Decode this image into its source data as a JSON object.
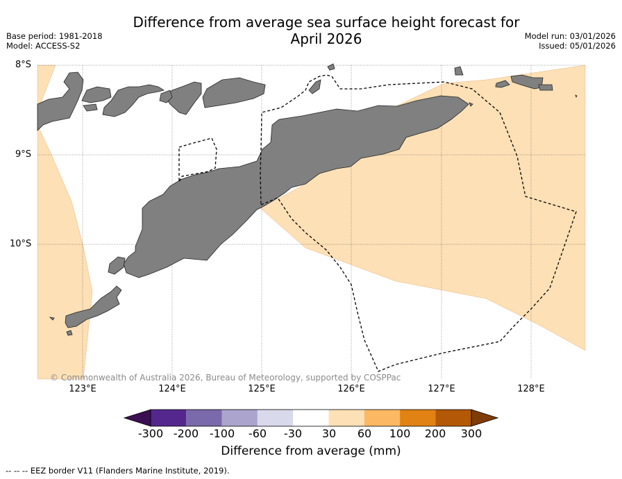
{
  "title": "Difference from average sea surface height forecast for\nApril 2026",
  "meta_left": {
    "base_period": "Base period: 1981-2018",
    "model": "Model: ACCESS-S2"
  },
  "meta_right": {
    "model_run": "Model run: 03/01/2026",
    "issued": "Issued: 05/01/2026"
  },
  "axes": {
    "lat_labels": [
      "8°S",
      "9°S",
      "10°S"
    ],
    "lon_labels": [
      "123°E",
      "124°E",
      "125°E",
      "126°E",
      "127°E",
      "128°E"
    ]
  },
  "copyright": "© Commonwealth of Australia 2026, Bureau of Meteorology, supported by COSPPac",
  "colorbar": {
    "ticks": [
      "-300",
      "-200",
      "-100",
      "-60",
      "-30",
      "30",
      "60",
      "100",
      "200",
      "300"
    ],
    "colors": [
      "#3b0f52",
      "#54278f",
      "#7a6aab",
      "#aba4cd",
      "#d8d9eb",
      "#ffffff",
      "#fde0b5",
      "#fdb863",
      "#e08214",
      "#b35806",
      "#7f3b08"
    ],
    "label": "Difference from average (mm)"
  },
  "map_colors": {
    "land": "#808080",
    "anomaly_30_60": "#fde0b5"
  },
  "footnote": "--  --  -- EEZ border V11 (Flanders Marine Institute, 2019)."
}
